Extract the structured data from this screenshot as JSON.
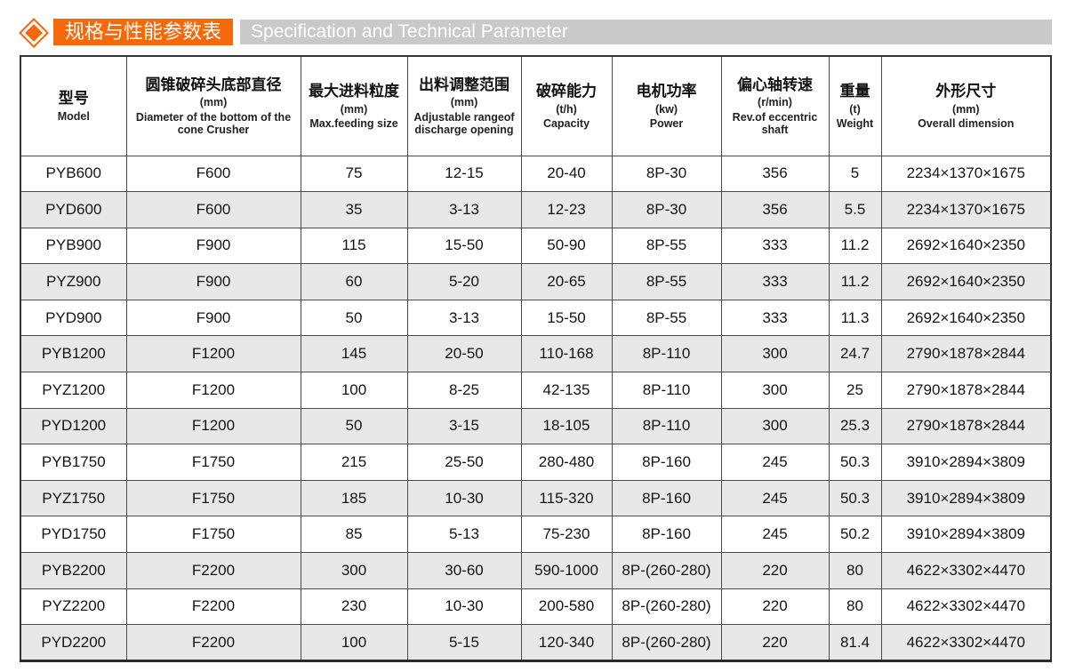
{
  "page": {
    "title_cn": "规格与性能参数表",
    "title_en": "Specification and Technical Parameter",
    "accent_color": "#F6690A",
    "ribbon_color": "#C9C9C9",
    "alt_row_color": "#E8E8E8"
  },
  "table": {
    "columns": [
      {
        "cn": "型号",
        "unit": "",
        "en": "Model"
      },
      {
        "cn": "圆锥破碎头底部直径",
        "unit": "(mm)",
        "en": "Diameter of the bottom of the cone Crusher"
      },
      {
        "cn": "最大进料粒度",
        "unit": "(mm)",
        "en": "Max.feeding size"
      },
      {
        "cn": "出料调整范围",
        "unit": "(mm)",
        "en": "Adjustable rangeof discharge opening"
      },
      {
        "cn": "破碎能力",
        "unit": "(t/h)",
        "en": "Capacity"
      },
      {
        "cn": "电机功率",
        "unit": "(kw)",
        "en": "Power"
      },
      {
        "cn": "偏心轴转速",
        "unit": "(r/min)",
        "en": "Rev.of eccentric shaft"
      },
      {
        "cn": "重量",
        "unit": "(t)",
        "en": "Weight"
      },
      {
        "cn": "外形尺寸",
        "unit": "(mm)",
        "en": "Overall dimension"
      }
    ],
    "rows": [
      [
        "PYB600",
        "F600",
        "75",
        "12-15",
        "20-40",
        "8P-30",
        "356",
        "5",
        "2234×1370×1675"
      ],
      [
        "PYD600",
        "F600",
        "35",
        "3-13",
        "12-23",
        "8P-30",
        "356",
        "5.5",
        "2234×1370×1675"
      ],
      [
        "PYB900",
        "F900",
        "115",
        "15-50",
        "50-90",
        "8P-55",
        "333",
        "11.2",
        "2692×1640×2350"
      ],
      [
        "PYZ900",
        "F900",
        "60",
        "5-20",
        "20-65",
        "8P-55",
        "333",
        "11.2",
        "2692×1640×2350"
      ],
      [
        "PYD900",
        "F900",
        "50",
        "3-13",
        "15-50",
        "8P-55",
        "333",
        "11.3",
        "2692×1640×2350"
      ],
      [
        "PYB1200",
        "F1200",
        "145",
        "20-50",
        "110-168",
        "8P-110",
        "300",
        "24.7",
        "2790×1878×2844"
      ],
      [
        "PYZ1200",
        "F1200",
        "100",
        "8-25",
        "42-135",
        "8P-110",
        "300",
        "25",
        "2790×1878×2844"
      ],
      [
        "PYD1200",
        "F1200",
        "50",
        "3-15",
        "18-105",
        "8P-110",
        "300",
        "25.3",
        "2790×1878×2844"
      ],
      [
        "PYB1750",
        "F1750",
        "215",
        "25-50",
        "280-480",
        "8P-160",
        "245",
        "50.3",
        "3910×2894×3809"
      ],
      [
        "PYZ1750",
        "F1750",
        "185",
        "10-30",
        "115-320",
        "8P-160",
        "245",
        "50.3",
        "3910×2894×3809"
      ],
      [
        "PYD1750",
        "F1750",
        "85",
        "5-13",
        "75-230",
        "8P-160",
        "245",
        "50.2",
        "3910×2894×3809"
      ],
      [
        "PYB2200",
        "F2200",
        "300",
        "30-60",
        "590-1000",
        "8P-(260-280)",
        "220",
        "80",
        "4622×3302×4470"
      ],
      [
        "PYZ2200",
        "F2200",
        "230",
        "10-30",
        "200-580",
        "8P-(260-280)",
        "220",
        "80",
        "4622×3302×4470"
      ],
      [
        "PYD2200",
        "F2200",
        "100",
        "5-15",
        "120-340",
        "8P-(260-280)",
        "220",
        "81.4",
        "4622×3302×4470"
      ]
    ]
  }
}
